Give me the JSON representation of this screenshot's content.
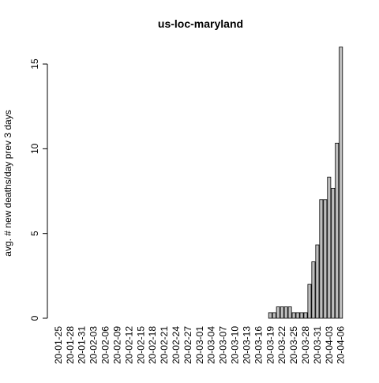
{
  "chart_data": {
    "type": "bar",
    "title": "us-loc-maryland",
    "y_label": "avg. # new deaths/day prev  3  days",
    "categories": [
      "20-01-25",
      null,
      null,
      "20-01-28",
      null,
      null,
      "20-01-31",
      null,
      null,
      "20-02-03",
      null,
      null,
      "20-02-06",
      null,
      null,
      "20-02-09",
      null,
      null,
      "20-02-12",
      null,
      null,
      "20-02-15",
      null,
      null,
      "20-02-18",
      null,
      null,
      "20-02-21",
      null,
      null,
      "20-02-24",
      null,
      null,
      "20-02-27",
      null,
      null,
      "20-03-01",
      null,
      null,
      "20-03-04",
      null,
      null,
      "20-03-07",
      null,
      null,
      "20-03-10",
      null,
      null,
      "20-03-13",
      null,
      null,
      "20-03-16",
      null,
      null,
      "20-03-19",
      null,
      null,
      "20-03-22",
      null,
      null,
      "20-03-25",
      null,
      null,
      "20-03-28",
      null,
      null,
      "20-03-31",
      null,
      null,
      "20-04-03",
      null,
      null,
      "20-04-06"
    ],
    "values": [
      0,
      0,
      0,
      0,
      0,
      0,
      0,
      0,
      0,
      0,
      0,
      0,
      0,
      0,
      0,
      0,
      0,
      0,
      0,
      0,
      0,
      0,
      0,
      0,
      0,
      0,
      0,
      0,
      0,
      0,
      0,
      0,
      0,
      0,
      0,
      0,
      0,
      0,
      0,
      0,
      0,
      0,
      0,
      0,
      0,
      0,
      0,
      0,
      0,
      0,
      0,
      0,
      0,
      0,
      0.33,
      0.33,
      0.67,
      0.67,
      0.67,
      0.67,
      0.33,
      0.33,
      0.33,
      0.33,
      2,
      3.33,
      4.33,
      7,
      7,
      8.33,
      7.67,
      10.33,
      16
    ],
    "color": "#bebebe",
    "ylim": [
      0,
      16
    ],
    "yticks": [
      0,
      5,
      10,
      15
    ]
  }
}
